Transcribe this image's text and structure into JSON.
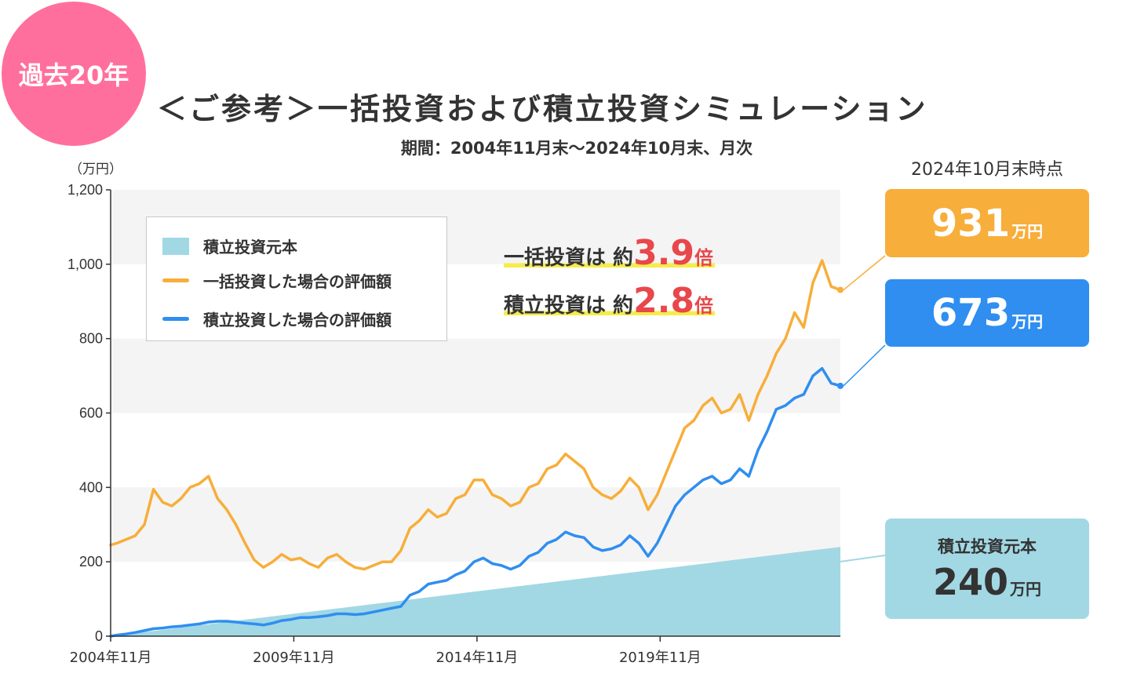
{
  "badge": "過去20年",
  "title": "＜ご参考＞一括投資および積立投資シミュレーション",
  "subtitle": "期間：2004年11月末〜2024年10月末、月次",
  "unit_label": "（万円）",
  "asof_label": "2024年10月末時点",
  "legend": {
    "principal": "積立投資元本",
    "lump_sum": "一括投資した場合の評価額",
    "monthly": "積立投資した場合の評価額"
  },
  "multipliers": {
    "lump_sum": {
      "text": "一括投資は 約",
      "value": "3.9",
      "unit": "倍"
    },
    "monthly": {
      "text": "積立投資は 約",
      "value": "2.8",
      "unit": "倍"
    }
  },
  "callouts": {
    "lump_sum": {
      "value": "931",
      "unit": "万円"
    },
    "monthly": {
      "value": "673",
      "unit": "万円"
    },
    "principal": {
      "caption": "積立投資元本",
      "value": "240",
      "unit": "万円"
    }
  },
  "colors": {
    "lump_sum": "#f7ae3a",
    "monthly": "#2f8ef0",
    "principal": "#a2d8e4",
    "band": "#f4f4f4",
    "badge": "#ff6f9d",
    "highlight_number": "#e8474b"
  },
  "chart_data": {
    "type": "line",
    "title": "＜ご参考＞一括投資および積立投資シミュレーション",
    "x_tick_labels": [
      "2004年11月",
      "2009年11月",
      "2014年11月",
      "2019年11月"
    ],
    "y_tick_labels": [
      "0",
      "200",
      "400",
      "600",
      "800",
      "1,000",
      "1,200"
    ],
    "y_ticks": [
      0,
      200,
      400,
      600,
      800,
      1000,
      1200
    ],
    "ylim": [
      0,
      1200
    ],
    "xlim": [
      2004.83,
      2024.75
    ],
    "ylabel": "（万円）",
    "grid": "horizontal bands",
    "legend_position": "top-left",
    "series": [
      {
        "name": "一括投資した場合の評価額",
        "color": "#f7ae3a",
        "x": [
          2004.83,
          2005.0,
          2005.25,
          2005.5,
          2005.75,
          2006.0,
          2006.25,
          2006.5,
          2006.75,
          2007.0,
          2007.25,
          2007.5,
          2007.75,
          2008.0,
          2008.25,
          2008.5,
          2008.75,
          2009.0,
          2009.25,
          2009.5,
          2009.75,
          2010.0,
          2010.25,
          2010.5,
          2010.75,
          2011.0,
          2011.25,
          2011.5,
          2011.75,
          2012.0,
          2012.25,
          2012.5,
          2012.75,
          2013.0,
          2013.25,
          2013.5,
          2013.75,
          2014.0,
          2014.25,
          2014.5,
          2014.75,
          2015.0,
          2015.25,
          2015.5,
          2015.75,
          2016.0,
          2016.25,
          2016.5,
          2016.75,
          2017.0,
          2017.25,
          2017.5,
          2017.75,
          2018.0,
          2018.25,
          2018.5,
          2018.75,
          2019.0,
          2019.25,
          2019.5,
          2019.75,
          2020.0,
          2020.25,
          2020.5,
          2020.75,
          2021.0,
          2021.25,
          2021.5,
          2021.75,
          2022.0,
          2022.25,
          2022.5,
          2022.75,
          2023.0,
          2023.25,
          2023.5,
          2023.75,
          2024.0,
          2024.25,
          2024.5,
          2024.75
        ],
        "y": [
          245,
          250,
          260,
          270,
          300,
          395,
          360,
          350,
          370,
          400,
          410,
          430,
          370,
          340,
          300,
          250,
          205,
          185,
          200,
          220,
          205,
          210,
          195,
          185,
          210,
          220,
          200,
          185,
          180,
          190,
          200,
          200,
          230,
          290,
          310,
          340,
          320,
          330,
          370,
          380,
          420,
          420,
          380,
          370,
          350,
          360,
          400,
          410,
          450,
          460,
          490,
          470,
          450,
          400,
          380,
          370,
          390,
          425,
          400,
          340,
          380,
          440,
          500,
          560,
          580,
          620,
          640,
          600,
          610,
          650,
          580,
          650,
          700,
          760,
          800,
          870,
          830,
          950,
          1010,
          940,
          931
        ]
      },
      {
        "name": "積立投資した場合の評価額",
        "color": "#2f8ef0",
        "x": [
          2004.83,
          2005.0,
          2005.25,
          2005.5,
          2005.75,
          2006.0,
          2006.25,
          2006.5,
          2006.75,
          2007.0,
          2007.25,
          2007.5,
          2007.75,
          2008.0,
          2008.25,
          2008.5,
          2008.75,
          2009.0,
          2009.25,
          2009.5,
          2009.75,
          2010.0,
          2010.25,
          2010.5,
          2010.75,
          2011.0,
          2011.25,
          2011.5,
          2011.75,
          2012.0,
          2012.25,
          2012.5,
          2012.75,
          2013.0,
          2013.25,
          2013.5,
          2013.75,
          2014.0,
          2014.25,
          2014.5,
          2014.75,
          2015.0,
          2015.25,
          2015.5,
          2015.75,
          2016.0,
          2016.25,
          2016.5,
          2016.75,
          2017.0,
          2017.25,
          2017.5,
          2017.75,
          2018.0,
          2018.25,
          2018.5,
          2018.75,
          2019.0,
          2019.25,
          2019.5,
          2019.75,
          2020.0,
          2020.25,
          2020.5,
          2020.75,
          2021.0,
          2021.25,
          2021.5,
          2021.75,
          2022.0,
          2022.25,
          2022.5,
          2022.75,
          2023.0,
          2023.25,
          2023.5,
          2023.75,
          2024.0,
          2024.25,
          2024.5,
          2024.75
        ],
        "y": [
          0,
          3,
          6,
          10,
          15,
          20,
          22,
          25,
          27,
          30,
          33,
          38,
          40,
          40,
          38,
          35,
          33,
          30,
          35,
          42,
          45,
          50,
          50,
          52,
          55,
          60,
          60,
          58,
          60,
          65,
          70,
          75,
          80,
          110,
          120,
          140,
          145,
          150,
          165,
          175,
          200,
          210,
          195,
          190,
          180,
          190,
          215,
          225,
          250,
          260,
          280,
          270,
          265,
          240,
          230,
          235,
          245,
          270,
          250,
          215,
          250,
          300,
          350,
          380,
          400,
          420,
          430,
          410,
          420,
          450,
          430,
          500,
          550,
          610,
          620,
          640,
          650,
          700,
          720,
          680,
          673
        ]
      },
      {
        "name": "積立投資元本",
        "color": "#a2d8e4",
        "x": [
          2004.83,
          2024.75
        ],
        "y": [
          0,
          240
        ]
      }
    ]
  }
}
